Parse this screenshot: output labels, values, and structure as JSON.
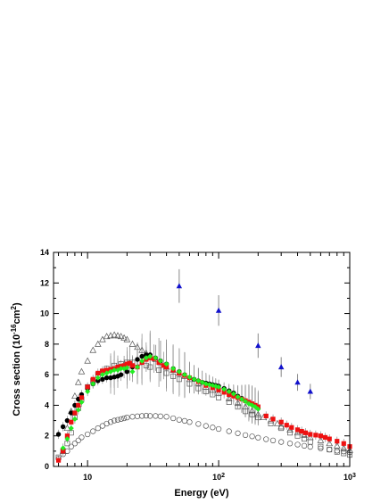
{
  "chart_data": {
    "type": "scatter",
    "title": "",
    "xlabel": "Energy (eV)",
    "ylabel": "Cross section (10^-16 cm^2)",
    "ylabel_parts": {
      "prefix": "Cross section (10",
      "exp1": "-16",
      "mid": "cm",
      "exp2": "2",
      "suffix": ")"
    },
    "x_scale": "log",
    "xlim": [
      5.5,
      1000
    ],
    "ylim": [
      0,
      14
    ],
    "x_ticks": [
      {
        "value": 10,
        "base": "10",
        "exp": ""
      },
      {
        "value": 100,
        "base": "10",
        "exp": "2"
      },
      {
        "value": 1000,
        "base": "10",
        "exp": "3"
      }
    ],
    "y_ticks": [
      0,
      2,
      4,
      6,
      8,
      10,
      12,
      14
    ],
    "grid": false,
    "series": [
      {
        "marker": "circle-open",
        "color": "#555555",
        "points": [
          [
            6,
            0.5
          ],
          [
            6.5,
            0.8
          ],
          [
            7,
            1.0
          ],
          [
            7.5,
            1.3
          ],
          [
            8,
            1.5
          ],
          [
            8.5,
            1.7
          ],
          [
            9,
            1.9
          ],
          [
            10,
            2.1
          ],
          [
            11,
            2.3
          ],
          [
            12,
            2.5
          ],
          [
            13,
            2.65
          ],
          [
            14,
            2.8
          ],
          [
            15,
            2.9
          ],
          [
            16,
            3.0
          ],
          [
            17,
            3.05
          ],
          [
            18,
            3.1
          ],
          [
            19,
            3.15
          ],
          [
            20,
            3.2
          ],
          [
            22,
            3.25
          ],
          [
            24,
            3.28
          ],
          [
            26,
            3.3
          ],
          [
            28,
            3.32
          ],
          [
            30,
            3.3
          ],
          [
            33,
            3.3
          ],
          [
            36,
            3.28
          ],
          [
            40,
            3.25
          ],
          [
            45,
            3.15
          ],
          [
            50,
            3.05
          ],
          [
            55,
            2.98
          ],
          [
            60,
            2.9
          ],
          [
            70,
            2.78
          ],
          [
            80,
            2.65
          ],
          [
            90,
            2.55
          ],
          [
            100,
            2.45
          ],
          [
            120,
            2.3
          ],
          [
            140,
            2.17
          ],
          [
            160,
            2.05
          ],
          [
            180,
            1.97
          ],
          [
            200,
            1.88
          ],
          [
            230,
            1.78
          ],
          [
            260,
            1.7
          ],
          [
            300,
            1.6
          ],
          [
            350,
            1.5
          ],
          [
            400,
            1.43
          ],
          [
            450,
            1.35
          ],
          [
            500,
            1.28
          ],
          [
            600,
            1.18
          ],
          [
            700,
            1.1
          ],
          [
            800,
            1.03
          ],
          [
            900,
            0.98
          ],
          [
            1000,
            0.93
          ]
        ]
      },
      {
        "marker": "triangle-open",
        "color": "#555555",
        "points": [
          [
            6.5,
            1.0
          ],
          [
            7,
            2.5
          ],
          [
            7.5,
            3.6
          ],
          [
            8,
            4.6
          ],
          [
            8.5,
            5.5
          ],
          [
            9,
            6.2
          ],
          [
            10,
            6.9
          ],
          [
            11,
            7.6
          ],
          [
            12,
            8.0
          ],
          [
            13,
            8.3
          ],
          [
            14,
            8.5
          ],
          [
            15,
            8.55
          ],
          [
            16,
            8.6
          ],
          [
            17,
            8.55
          ],
          [
            18,
            8.5
          ],
          [
            19,
            8.4
          ],
          [
            20,
            8.3
          ],
          [
            22,
            8.0
          ],
          [
            24,
            7.8
          ],
          [
            26,
            7.6
          ],
          [
            28,
            7.4
          ],
          [
            30,
            7.2
          ],
          [
            33,
            7.0
          ],
          [
            36,
            6.8
          ],
          [
            40,
            6.5
          ],
          [
            45,
            6.3
          ],
          [
            50,
            6.1
          ],
          [
            55,
            5.9
          ],
          [
            60,
            5.7
          ],
          [
            70,
            5.45
          ],
          [
            80,
            5.2
          ],
          [
            90,
            5.0
          ],
          [
            100,
            4.8
          ],
          [
            120,
            4.45
          ],
          [
            140,
            4.15
          ],
          [
            160,
            3.9
          ],
          [
            180,
            3.65
          ],
          [
            200,
            3.4
          ],
          [
            220,
            3.2
          ],
          [
            250,
            3.0
          ],
          [
            280,
            2.8
          ],
          [
            300,
            2.6
          ],
          [
            350,
            2.4
          ],
          [
            400,
            2.2
          ],
          [
            450,
            2.05
          ],
          [
            500,
            1.9
          ],
          [
            600,
            1.7
          ],
          [
            700,
            1.5
          ],
          [
            800,
            1.35
          ],
          [
            900,
            1.2
          ],
          [
            1000,
            1.05
          ]
        ]
      },
      {
        "marker": "square-open",
        "color": "#555555",
        "points": [
          [
            6,
            0.6
          ],
          [
            6.5,
            1.0
          ],
          [
            7,
            1.5
          ],
          [
            7.5,
            2.2
          ],
          [
            8,
            3.2
          ],
          [
            8.5,
            3.8
          ],
          [
            9,
            4.4
          ],
          [
            10,
            5.2
          ],
          [
            11,
            5.6
          ],
          [
            12,
            6.0
          ],
          [
            13,
            6.2
          ],
          [
            14,
            6.4
          ],
          [
            16,
            6.6
          ],
          [
            18,
            6.7
          ],
          [
            20,
            6.8
          ],
          [
            22,
            6.8
          ],
          [
            25,
            6.8
          ],
          [
            28,
            6.6
          ],
          [
            30,
            6.5
          ],
          [
            35,
            6.3
          ],
          [
            40,
            6.1
          ],
          [
            45,
            5.9
          ],
          [
            50,
            5.7
          ],
          [
            60,
            5.4
          ],
          [
            70,
            5.1
          ],
          [
            80,
            4.9
          ],
          [
            90,
            4.7
          ],
          [
            100,
            4.5
          ],
          [
            120,
            4.2
          ],
          [
            140,
            3.9
          ],
          [
            160,
            3.6
          ],
          [
            180,
            3.4
          ],
          [
            200,
            3.2
          ],
          [
            250,
            2.8
          ],
          [
            300,
            2.5
          ],
          [
            350,
            2.2
          ],
          [
            400,
            2.0
          ],
          [
            450,
            1.8
          ],
          [
            500,
            1.6
          ],
          [
            600,
            1.3
          ],
          [
            700,
            1.1
          ],
          [
            800,
            0.95
          ],
          [
            900,
            0.85
          ],
          [
            1000,
            0.75
          ]
        ]
      },
      {
        "marker": "circle-filled",
        "color": "#000000",
        "points": [
          [
            6,
            2.1
          ],
          [
            6.5,
            2.6
          ],
          [
            7,
            3.0
          ],
          [
            7.5,
            3.5
          ],
          [
            8,
            4.0
          ],
          [
            8.5,
            4.4
          ],
          [
            9,
            4.7
          ],
          [
            10,
            5.1
          ],
          [
            11,
            5.4
          ],
          [
            12,
            5.6
          ],
          [
            13,
            5.7
          ],
          [
            14,
            5.8
          ],
          [
            15,
            5.8
          ],
          [
            16,
            5.85
          ],
          [
            17,
            5.9
          ],
          [
            18,
            6.0
          ],
          [
            20,
            6.2
          ],
          [
            22,
            6.5
          ],
          [
            24,
            7.0
          ],
          [
            26,
            7.2
          ],
          [
            28,
            7.3
          ],
          [
            30,
            7.3
          ],
          [
            33,
            7.1
          ],
          [
            36,
            6.9
          ],
          [
            40,
            6.7
          ],
          [
            45,
            6.4
          ],
          [
            50,
            6.2
          ],
          [
            55,
            6.0
          ],
          [
            60,
            5.8
          ],
          [
            65,
            5.7
          ],
          [
            70,
            5.6
          ],
          [
            75,
            5.5
          ],
          [
            80,
            5.45
          ],
          [
            85,
            5.4
          ],
          [
            90,
            5.35
          ],
          [
            95,
            5.3
          ],
          [
            100,
            5.25
          ],
          [
            110,
            5.1
          ],
          [
            120,
            4.95
          ],
          [
            130,
            4.8
          ],
          [
            140,
            4.6
          ],
          [
            150,
            4.45
          ],
          [
            160,
            4.3
          ],
          [
            170,
            4.2
          ],
          [
            180,
            4.05
          ],
          [
            190,
            3.95
          ],
          [
            200,
            3.8
          ]
        ]
      },
      {
        "marker": "square-filled",
        "color": "#ee1111",
        "points": [
          [
            6,
            0.4
          ],
          [
            6.5,
            1.0
          ],
          [
            7,
            2.0
          ],
          [
            7.5,
            2.9
          ],
          [
            8,
            3.5
          ],
          [
            8.5,
            4.0
          ],
          [
            9,
            4.5
          ],
          [
            10,
            5.2
          ],
          [
            11,
            5.7
          ],
          [
            12,
            6.1
          ],
          [
            13,
            6.25
          ],
          [
            14,
            6.3
          ],
          [
            15,
            6.35
          ],
          [
            16,
            6.4
          ],
          [
            17,
            6.5
          ],
          [
            18,
            6.55
          ],
          [
            19,
            6.6
          ],
          [
            20,
            6.7
          ],
          [
            21,
            6.75
          ],
          [
            22,
            6.6
          ],
          [
            24,
            6.5
          ],
          [
            26,
            6.8
          ],
          [
            28,
            7.0
          ],
          [
            30,
            7.1
          ],
          [
            32,
            7.05
          ],
          [
            35,
            6.8
          ],
          [
            38,
            6.6
          ],
          [
            40,
            6.5
          ],
          [
            45,
            6.3
          ],
          [
            50,
            6.1
          ],
          [
            55,
            5.95
          ],
          [
            60,
            5.8
          ],
          [
            70,
            5.55
          ],
          [
            80,
            5.3
          ],
          [
            90,
            5.15
          ],
          [
            100,
            5.0
          ],
          [
            110,
            4.85
          ],
          [
            120,
            4.7
          ],
          [
            130,
            4.6
          ],
          [
            140,
            4.5
          ],
          [
            150,
            4.4
          ],
          [
            160,
            4.3
          ],
          [
            170,
            4.2
          ],
          [
            180,
            4.1
          ],
          [
            190,
            4.0
          ],
          [
            200,
            3.9
          ],
          [
            230,
            3.3
          ],
          [
            260,
            3.1
          ],
          [
            300,
            2.9
          ],
          [
            330,
            2.7
          ],
          [
            360,
            2.55
          ],
          [
            400,
            2.4
          ],
          [
            430,
            2.3
          ],
          [
            460,
            2.2
          ],
          [
            500,
            2.1
          ],
          [
            550,
            2.05
          ],
          [
            600,
            2.0
          ],
          [
            650,
            1.9
          ],
          [
            700,
            1.8
          ],
          [
            800,
            1.65
          ],
          [
            900,
            1.5
          ],
          [
            1000,
            1.3
          ]
        ]
      },
      {
        "marker": "diamond-filled",
        "color": "#22ee22",
        "points": [
          [
            6.5,
            1.2
          ],
          [
            7,
            1.8
          ],
          [
            7.5,
            2.5
          ],
          [
            8,
            3.1
          ],
          [
            8.5,
            3.7
          ],
          [
            9,
            4.2
          ],
          [
            10,
            4.9
          ],
          [
            11,
            5.4
          ],
          [
            12,
            5.8
          ],
          [
            13,
            6.0
          ],
          [
            14,
            6.1
          ],
          [
            15,
            6.2
          ],
          [
            16,
            6.3
          ],
          [
            17,
            6.3
          ],
          [
            18,
            6.4
          ],
          [
            19,
            6.4
          ],
          [
            20,
            6.45
          ],
          [
            22,
            6.2
          ],
          [
            24,
            6.5
          ],
          [
            26,
            6.9
          ],
          [
            28,
            7.1
          ],
          [
            30,
            7.2
          ],
          [
            33,
            7.1
          ],
          [
            36,
            6.9
          ],
          [
            40,
            6.7
          ],
          [
            45,
            6.4
          ],
          [
            50,
            6.2
          ],
          [
            55,
            6.0
          ],
          [
            60,
            5.85
          ],
          [
            65,
            5.7
          ],
          [
            70,
            5.6
          ],
          [
            75,
            5.5
          ],
          [
            80,
            5.4
          ],
          [
            85,
            5.35
          ],
          [
            90,
            5.3
          ],
          [
            95,
            5.25
          ],
          [
            100,
            5.2
          ],
          [
            110,
            5.05
          ],
          [
            120,
            4.9
          ],
          [
            130,
            4.75
          ],
          [
            140,
            4.55
          ],
          [
            150,
            4.4
          ],
          [
            160,
            4.25
          ],
          [
            170,
            4.1
          ],
          [
            180,
            4.0
          ],
          [
            190,
            3.9
          ],
          [
            200,
            3.75
          ]
        ]
      },
      {
        "marker": "triangle-filled",
        "color": "#1111cc",
        "points": [
          [
            50,
            11.8
          ],
          [
            100,
            10.2
          ],
          [
            200,
            7.9
          ],
          [
            300,
            6.5
          ],
          [
            400,
            5.5
          ],
          [
            500,
            4.9
          ]
        ],
        "errors": [
          1.1,
          1.0,
          0.8,
          0.65,
          0.55,
          0.5
        ]
      }
    ]
  }
}
